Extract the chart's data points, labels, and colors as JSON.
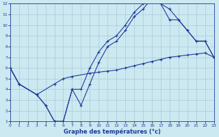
{
  "bg_color": "#cce8f0",
  "line_color": "#1a3a9a",
  "grid_color": "#aac8d8",
  "xlabel": "Graphe des températures (°c)",
  "xlim": [
    0,
    23
  ],
  "ylim": [
    1,
    12
  ],
  "xticks": [
    0,
    1,
    2,
    3,
    4,
    5,
    6,
    7,
    8,
    9,
    10,
    11,
    12,
    13,
    14,
    15,
    16,
    17,
    18,
    19,
    20,
    21,
    22,
    23
  ],
  "yticks": [
    1,
    2,
    3,
    4,
    5,
    6,
    7,
    8,
    9,
    10,
    11,
    12
  ],
  "line1_x": [
    0,
    1,
    3,
    4,
    5,
    6,
    7,
    8,
    9,
    10,
    11,
    12,
    13,
    14,
    15,
    16,
    17,
    18,
    19,
    20,
    21,
    22,
    23
  ],
  "line1_y": [
    6,
    4.5,
    3.5,
    2.5,
    1.0,
    1.0,
    4.0,
    2.5,
    4.5,
    6.5,
    8.0,
    8.5,
    9.5,
    10.8,
    11.5,
    12.5,
    12.0,
    11.5,
    10.5,
    9.5,
    8.5,
    8.5,
    7.0
  ],
  "line2_x": [
    0,
    1,
    3,
    5,
    6,
    7,
    9,
    10,
    11,
    12,
    13,
    14,
    15,
    16,
    17,
    18,
    19,
    20,
    21,
    22,
    23
  ],
  "line2_y": [
    6,
    4.5,
    3.5,
    4.5,
    5.0,
    5.2,
    5.5,
    5.6,
    5.7,
    5.8,
    6.0,
    6.2,
    6.4,
    6.6,
    6.8,
    7.0,
    7.1,
    7.2,
    7.3,
    7.4,
    7.0
  ],
  "line3_x": [
    0,
    1,
    3,
    4,
    5,
    6,
    7,
    8,
    9,
    10,
    11,
    12,
    13,
    14,
    15,
    16,
    17,
    18,
    19,
    20,
    21,
    22,
    23
  ],
  "line3_y": [
    6,
    4.5,
    3.5,
    2.5,
    1.0,
    1.0,
    4.0,
    4.0,
    6.0,
    7.5,
    8.5,
    9.0,
    10.0,
    11.2,
    12.0,
    12.2,
    12.0,
    10.5,
    10.5,
    9.5,
    8.5,
    8.5,
    7.0
  ]
}
